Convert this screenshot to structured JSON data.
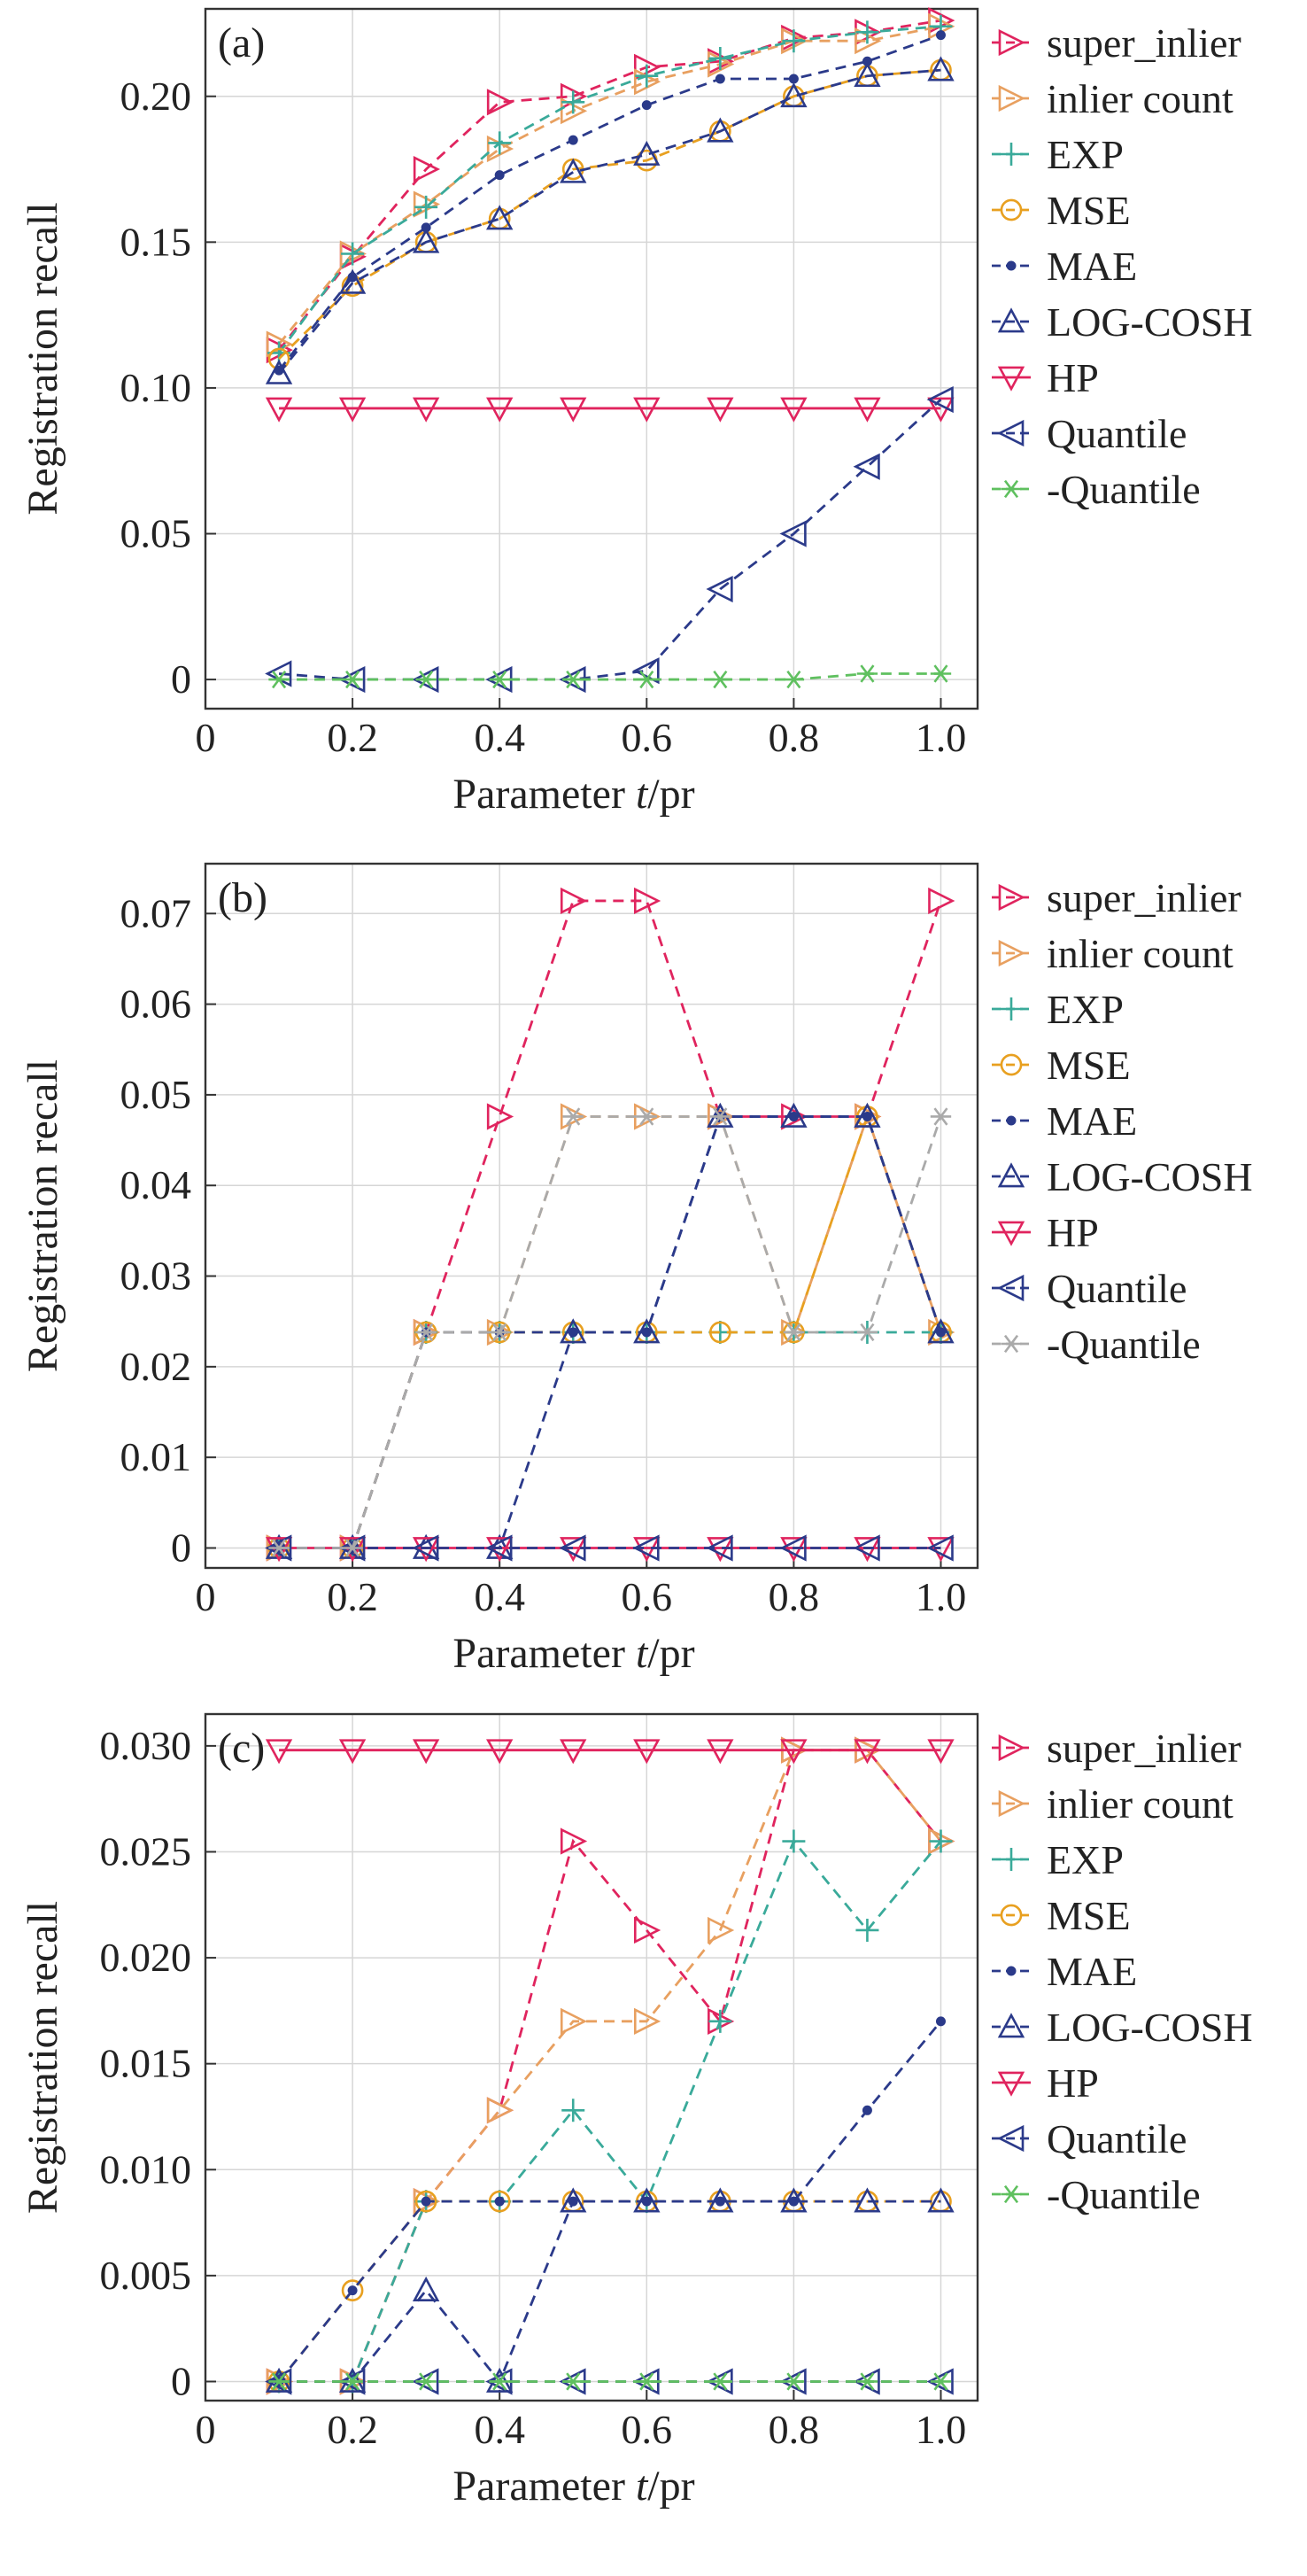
{
  "chart_data": [
    {
      "type": "line",
      "panel_label": "(a)",
      "xlabel_prefix": "Parameter ",
      "xlabel_var": "t",
      "xlabel_suffix": "/pr",
      "ylabel": "Registration recall",
      "xlim": [
        0,
        1.05
      ],
      "ylim": [
        -0.01,
        0.23
      ],
      "x_ticks": [
        0,
        0.2,
        0.4,
        0.6,
        0.8,
        1.0
      ],
      "x_tick_labels": [
        "0",
        "0.2",
        "0.4",
        "0.6",
        "0.8",
        "1.0"
      ],
      "y_ticks": [
        0,
        0.05,
        0.1,
        0.15,
        0.2
      ],
      "y_tick_labels": [
        "0",
        "0.05",
        "0.10",
        "0.15",
        "0.20"
      ],
      "grid": true,
      "legend_position": "right",
      "x": [
        0.1,
        0.2,
        0.3,
        0.4,
        0.5,
        0.6,
        0.7,
        0.8,
        0.9,
        1.0
      ],
      "series": [
        {
          "name": "super_inlier",
          "color": "#e0245e",
          "dash": "dashed",
          "marker": "tri-right",
          "values": [
            0.113,
            0.145,
            0.175,
            0.198,
            0.2,
            0.21,
            0.212,
            0.22,
            0.222,
            0.226
          ]
        },
        {
          "name": "inlier count",
          "color": "#e8a060",
          "dash": "dashed",
          "marker": "tri-right",
          "values": [
            0.115,
            0.146,
            0.163,
            0.182,
            0.195,
            0.205,
            0.211,
            0.219,
            0.219,
            0.224
          ]
        },
        {
          "name": "EXP",
          "color": "#3aaa9a",
          "dash": "dashed",
          "marker": "plus",
          "values": [
            0.112,
            0.146,
            0.162,
            0.184,
            0.198,
            0.207,
            0.213,
            0.219,
            0.222,
            0.224
          ]
        },
        {
          "name": "MSE",
          "color": "#e8a020",
          "dash": "dashed",
          "marker": "circle",
          "values": [
            0.11,
            0.135,
            0.15,
            0.158,
            0.175,
            0.178,
            0.188,
            0.2,
            0.207,
            0.209
          ]
        },
        {
          "name": "MAE",
          "color": "#2b3a8a",
          "dash": "dashed",
          "marker": "dot",
          "values": [
            0.106,
            0.138,
            0.155,
            0.173,
            0.185,
            0.197,
            0.206,
            0.206,
            0.212,
            0.221
          ]
        },
        {
          "name": "LOG-COSH",
          "color": "#2b3a8a",
          "dash": "dashed",
          "marker": "tri-up",
          "values": [
            0.105,
            0.136,
            0.15,
            0.158,
            0.174,
            0.18,
            0.188,
            0.2,
            0.207,
            0.209
          ]
        },
        {
          "name": "HP",
          "color": "#e0245e",
          "dash": "solid",
          "marker": "tri-down",
          "values": [
            0.093,
            0.093,
            0.093,
            0.093,
            0.093,
            0.093,
            0.093,
            0.093,
            0.093,
            0.093
          ]
        },
        {
          "name": "Quantile",
          "color": "#2b3a8a",
          "dash": "dashed",
          "marker": "tri-left",
          "values": [
            0.002,
            0.0,
            0.0,
            0.0,
            0.0,
            0.003,
            0.031,
            0.05,
            0.073,
            0.096
          ]
        },
        {
          "name": "-Quantile",
          "color": "#5fc05f",
          "dash": "dashed",
          "marker": "star",
          "values": [
            0.0,
            0.0,
            0.0,
            0.0,
            0.0,
            0.0,
            0.0,
            0.0,
            0.002,
            0.002
          ]
        }
      ]
    },
    {
      "type": "line",
      "panel_label": "(b)",
      "xlabel_prefix": "Parameter ",
      "xlabel_var": "t",
      "xlabel_suffix": "/pr",
      "ylabel": "Registration recall",
      "xlim": [
        0,
        1.05
      ],
      "ylim": [
        -0.0022,
        0.0755
      ],
      "x_ticks": [
        0,
        0.2,
        0.4,
        0.6,
        0.8,
        1.0
      ],
      "x_tick_labels": [
        "0",
        "0.2",
        "0.4",
        "0.6",
        "0.8",
        "1.0"
      ],
      "y_ticks": [
        0,
        0.01,
        0.02,
        0.03,
        0.04,
        0.05,
        0.06,
        0.07
      ],
      "y_tick_labels": [
        "0",
        "0.01",
        "0.02",
        "0.03",
        "0.04",
        "0.05",
        "0.06",
        "0.07"
      ],
      "grid": true,
      "legend_position": "right",
      "x": [
        0.1,
        0.2,
        0.3,
        0.4,
        0.5,
        0.6,
        0.7,
        0.8,
        0.9,
        1.0
      ],
      "series": [
        {
          "name": "super_inlier",
          "color": "#e0245e",
          "dash": "dashed",
          "marker": "tri-right",
          "values": [
            0.0,
            0.0,
            0.0238,
            0.0476,
            0.0714,
            0.0714,
            0.0476,
            0.0476,
            0.0476,
            0.0714
          ]
        },
        {
          "name": "inlier count",
          "color": "#e8a060",
          "dash": "dashed",
          "marker": "tri-right",
          "values": [
            0.0,
            0.0,
            0.0238,
            0.0238,
            0.0476,
            0.0476,
            0.0476,
            0.0238,
            0.0476,
            0.0238
          ]
        },
        {
          "name": "EXP",
          "color": "#3aaa9a",
          "dash": "dashed",
          "marker": "plus",
          "values": [
            0.0,
            0.0,
            0.0238,
            0.0238,
            0.0238,
            0.0238,
            0.0238,
            0.0238,
            0.0238,
            0.0238
          ]
        },
        {
          "name": "MSE",
          "color": "#e8a020",
          "dash": "dashed",
          "marker": "circle",
          "values": [
            0.0,
            0.0,
            0.0238,
            0.0238,
            0.0238,
            0.0238,
            0.0238,
            0.0238,
            0.0476,
            0.0238
          ]
        },
        {
          "name": "MAE",
          "color": "#2b3a8a",
          "dash": "dashed",
          "marker": "dot",
          "values": [
            0.0,
            0.0,
            0.0238,
            0.0238,
            0.0238,
            0.0238,
            0.0476,
            0.0476,
            0.0476,
            0.0238
          ]
        },
        {
          "name": "LOG-COSH",
          "color": "#2b3a8a",
          "dash": "dashed",
          "marker": "tri-up",
          "values": [
            0.0,
            0.0,
            0.0,
            0.0,
            0.0238,
            0.0238,
            0.0476,
            0.0476,
            0.0476,
            0.0238
          ]
        },
        {
          "name": "HP",
          "color": "#e0245e",
          "dash": "solid",
          "marker": "tri-down",
          "values": [
            0.0,
            0.0,
            0.0,
            0.0,
            0.0,
            0.0,
            0.0,
            0.0,
            0.0,
            0.0
          ]
        },
        {
          "name": "Quantile",
          "color": "#2b3a8a",
          "dash": "dashed",
          "marker": "tri-left",
          "values": [
            0.0,
            0.0,
            0.0,
            0.0,
            0.0,
            0.0,
            0.0,
            0.0,
            0.0,
            0.0
          ]
        },
        {
          "name": "-Quantile",
          "color": "#aaaaaa",
          "dash": "dashed",
          "marker": "star",
          "values": [
            0.0,
            0.0,
            0.0238,
            0.0238,
            0.0476,
            0.0476,
            0.0476,
            0.0238,
            0.0238,
            0.0476
          ]
        }
      ]
    },
    {
      "type": "line",
      "panel_label": "(c)",
      "xlabel_prefix": "Parameter ",
      "xlabel_var": "t",
      "xlabel_suffix": "/pr",
      "ylabel": "Registration recall",
      "xlim": [
        0,
        1.05
      ],
      "ylim": [
        -0.0009,
        0.0315
      ],
      "x_ticks": [
        0,
        0.2,
        0.4,
        0.6,
        0.8,
        1.0
      ],
      "x_tick_labels": [
        "0",
        "0.2",
        "0.4",
        "0.6",
        "0.8",
        "1.0"
      ],
      "y_ticks": [
        0,
        0.005,
        0.01,
        0.015,
        0.02,
        0.025,
        0.03
      ],
      "y_tick_labels": [
        "0",
        "0.005",
        "0.010",
        "0.015",
        "0.020",
        "0.025",
        "0.030"
      ],
      "grid": true,
      "legend_position": "right",
      "x": [
        0.1,
        0.2,
        0.3,
        0.4,
        0.5,
        0.6,
        0.7,
        0.8,
        0.9,
        1.0
      ],
      "series": [
        {
          "name": "super_inlier",
          "color": "#e0245e",
          "dash": "dashed",
          "marker": "tri-right",
          "values": [
            0.0,
            0.0,
            0.0085,
            0.0128,
            0.0255,
            0.0213,
            0.017,
            0.0298,
            0.0298,
            0.0255
          ]
        },
        {
          "name": "inlier count",
          "color": "#e8a060",
          "dash": "dashed",
          "marker": "tri-right",
          "values": [
            0.0,
            0.0,
            0.0085,
            0.0128,
            0.017,
            0.017,
            0.0213,
            0.0298,
            0.0298,
            0.0255
          ]
        },
        {
          "name": "EXP",
          "color": "#3aaa9a",
          "dash": "dashed",
          "marker": "plus",
          "values": [
            0.0,
            0.0,
            0.0085,
            0.0085,
            0.0128,
            0.0085,
            0.017,
            0.0255,
            0.0213,
            0.0255
          ]
        },
        {
          "name": "MSE",
          "color": "#e8a020",
          "dash": "dashed",
          "marker": "circle",
          "values": [
            0.0,
            0.0043,
            0.0085,
            0.0085,
            0.0085,
            0.0085,
            0.0085,
            0.0085,
            0.0085,
            0.0085
          ]
        },
        {
          "name": "MAE",
          "color": "#2b3a8a",
          "dash": "dashed",
          "marker": "dot",
          "values": [
            0.0,
            0.0043,
            0.0085,
            0.0085,
            0.0085,
            0.0085,
            0.0085,
            0.0085,
            0.0128,
            0.017
          ]
        },
        {
          "name": "LOG-COSH",
          "color": "#2b3a8a",
          "dash": "dashed",
          "marker": "tri-up",
          "values": [
            0.0,
            0.0,
            0.0043,
            0.0,
            0.0085,
            0.0085,
            0.0085,
            0.0085,
            0.0085,
            0.0085
          ]
        },
        {
          "name": "HP",
          "color": "#e0245e",
          "dash": "solid",
          "marker": "tri-down",
          "values": [
            0.0298,
            0.0298,
            0.0298,
            0.0298,
            0.0298,
            0.0298,
            0.0298,
            0.0298,
            0.0298,
            0.0298
          ]
        },
        {
          "name": "Quantile",
          "color": "#2b3a8a",
          "dash": "dashed",
          "marker": "tri-left",
          "values": [
            0.0,
            0.0,
            0.0,
            0.0,
            0.0,
            0.0,
            0.0,
            0.0,
            0.0,
            0.0
          ]
        },
        {
          "name": "-Quantile",
          "color": "#5fc05f",
          "dash": "dashed",
          "marker": "star",
          "values": [
            0.0,
            0.0,
            0.0,
            0.0,
            0.0,
            0.0,
            0.0,
            0.0,
            0.0,
            0.0
          ]
        }
      ]
    }
  ]
}
